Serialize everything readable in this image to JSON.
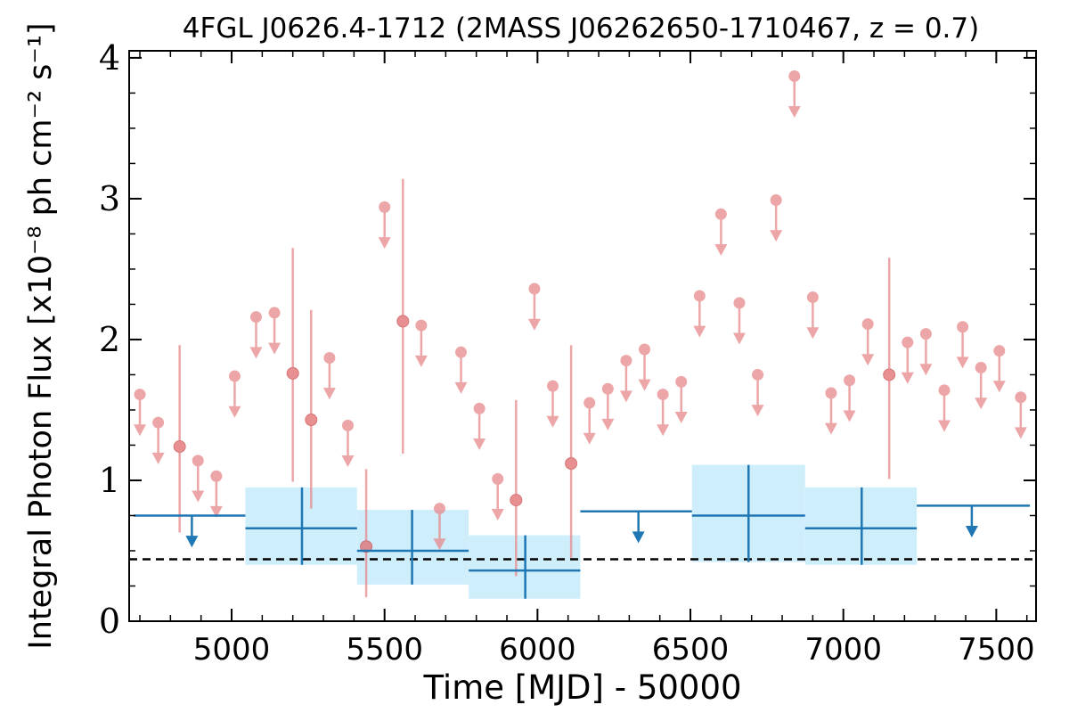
{
  "chart_data": {
    "type": "scatter",
    "title": "4FGL J0626.4-1712 (2MASS J06262650-1710467, z = 0.7)",
    "xlabel": "Time [MJD] - 50000",
    "ylabel": "Integral Photon Flux [x10⁻⁸ ph cm⁻² s⁻¹]",
    "xlim": [
      4665,
      7630
    ],
    "ylim": [
      0,
      4.05
    ],
    "xticks": [
      5000,
      5500,
      6000,
      6500,
      7000,
      7500
    ],
    "xtick_labels": [
      "5000",
      "5500",
      "6000",
      "6500",
      "7000",
      "7500"
    ],
    "yticks": [
      0,
      1,
      2,
      3,
      4
    ],
    "ytick_labels": [
      "0",
      "1",
      "2",
      "3",
      "4"
    ],
    "baseline": 0.44,
    "short_bins": {
      "color": "#e8898b",
      "upper_limits": [
        {
          "x": 4700,
          "y": 1.61
        },
        {
          "x": 4760,
          "y": 1.41
        },
        {
          "x": 4890,
          "y": 1.14
        },
        {
          "x": 4950,
          "y": 1.03
        },
        {
          "x": 5010,
          "y": 1.74
        },
        {
          "x": 5080,
          "y": 2.16
        },
        {
          "x": 5140,
          "y": 2.19
        },
        {
          "x": 5320,
          "y": 1.87
        },
        {
          "x": 5380,
          "y": 1.39
        },
        {
          "x": 5500,
          "y": 2.94
        },
        {
          "x": 5620,
          "y": 2.1
        },
        {
          "x": 5680,
          "y": 0.8
        },
        {
          "x": 5750,
          "y": 1.91
        },
        {
          "x": 5810,
          "y": 1.51
        },
        {
          "x": 5870,
          "y": 1.01
        },
        {
          "x": 5990,
          "y": 2.36
        },
        {
          "x": 6050,
          "y": 1.67
        },
        {
          "x": 6170,
          "y": 1.55
        },
        {
          "x": 6230,
          "y": 1.65
        },
        {
          "x": 6290,
          "y": 1.85
        },
        {
          "x": 6350,
          "y": 1.93
        },
        {
          "x": 6410,
          "y": 1.61
        },
        {
          "x": 6470,
          "y": 1.7
        },
        {
          "x": 6530,
          "y": 2.31
        },
        {
          "x": 6600,
          "y": 2.89
        },
        {
          "x": 6660,
          "y": 2.26
        },
        {
          "x": 6720,
          "y": 1.75
        },
        {
          "x": 6780,
          "y": 2.99
        },
        {
          "x": 6840,
          "y": 3.87
        },
        {
          "x": 6900,
          "y": 2.3
        },
        {
          "x": 6960,
          "y": 1.62
        },
        {
          "x": 7020,
          "y": 1.71
        },
        {
          "x": 7080,
          "y": 2.11
        },
        {
          "x": 7210,
          "y": 1.98
        },
        {
          "x": 7270,
          "y": 2.04
        },
        {
          "x": 7330,
          "y": 1.64
        },
        {
          "x": 7390,
          "y": 2.09
        },
        {
          "x": 7450,
          "y": 1.8
        },
        {
          "x": 7510,
          "y": 1.92
        },
        {
          "x": 7580,
          "y": 1.59
        }
      ],
      "detections": [
        {
          "x": 4830,
          "y": 1.24,
          "ylo": 0.63,
          "yhi": 1.96
        },
        {
          "x": 5200,
          "y": 1.76,
          "ylo": 0.99,
          "yhi": 2.65
        },
        {
          "x": 5260,
          "y": 1.43,
          "ylo": 0.8,
          "yhi": 2.21
        },
        {
          "x": 5440,
          "y": 0.53,
          "ylo": 0.17,
          "yhi": 1.08
        },
        {
          "x": 5560,
          "y": 2.13,
          "ylo": 1.19,
          "yhi": 3.14
        },
        {
          "x": 5930,
          "y": 0.86,
          "ylo": 0.32,
          "yhi": 1.57
        },
        {
          "x": 6110,
          "y": 1.12,
          "ylo": 0.45,
          "yhi": 1.96
        },
        {
          "x": 7150,
          "y": 1.75,
          "ylo": 1.01,
          "yhi": 2.58
        }
      ]
    },
    "long_bins": {
      "color": "#1f77b4",
      "band_color": "#cfeefc",
      "detections": [
        {
          "x0": 5045,
          "x1": 5410,
          "x": 5230,
          "y": 0.66,
          "ylo": 0.4,
          "yhi": 0.95
        },
        {
          "x0": 5410,
          "x1": 5775,
          "x": 5590,
          "y": 0.5,
          "ylo": 0.26,
          "yhi": 0.79
        },
        {
          "x0": 5775,
          "x1": 6140,
          "x": 5960,
          "y": 0.36,
          "ylo": 0.16,
          "yhi": 0.61
        },
        {
          "x0": 6505,
          "x1": 6875,
          "x": 6690,
          "y": 0.75,
          "ylo": 0.42,
          "yhi": 1.11
        },
        {
          "x0": 6875,
          "x1": 7240,
          "x": 7060,
          "y": 0.66,
          "ylo": 0.4,
          "yhi": 0.95
        }
      ],
      "upper_limits": [
        {
          "x0": 4680,
          "x1": 5045,
          "x": 4870,
          "y": 0.75
        },
        {
          "x0": 6140,
          "x1": 6505,
          "x": 6330,
          "y": 0.78
        },
        {
          "x0": 7240,
          "x1": 7610,
          "x": 7420,
          "y": 0.82
        }
      ]
    }
  }
}
